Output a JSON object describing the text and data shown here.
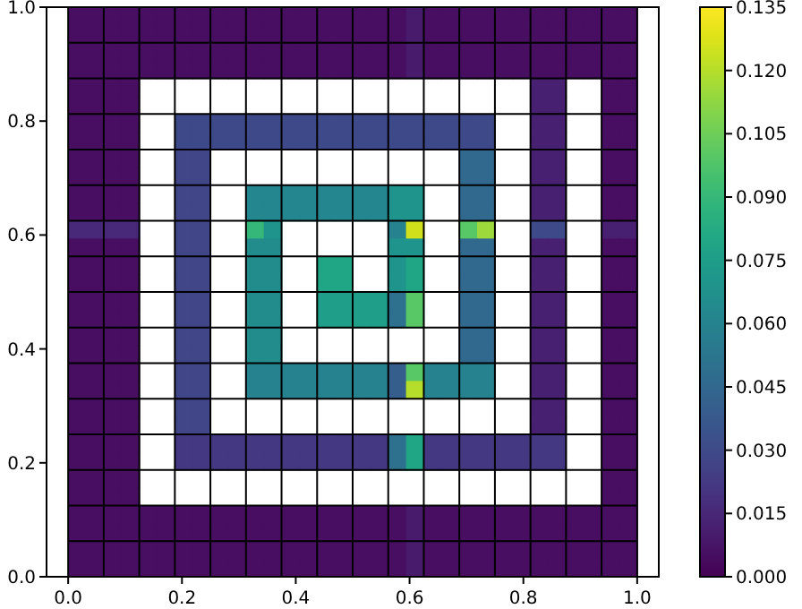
{
  "chart_data": {
    "type": "heatmap",
    "x": [
      0.015625,
      0.046875,
      0.078125,
      0.109375,
      0.140625,
      0.171875,
      0.203125,
      0.234375,
      0.265625,
      0.296875,
      0.328125,
      0.359375,
      0.390625,
      0.421875,
      0.453125,
      0.484375,
      0.515625,
      0.546875,
      0.578125,
      0.609375,
      0.640625,
      0.671875,
      0.703125,
      0.734375,
      0.765625,
      0.796875,
      0.828125,
      0.859375,
      0.890625,
      0.921875,
      0.953125,
      0.984375
    ],
    "cells": [
      [
        0.005,
        0.005,
        0.005,
        0.005,
        0.005,
        0.005,
        0.005,
        0.005,
        0.005,
        0.005,
        0.005,
        0.005,
        0.005,
        0.005,
        0.005,
        0.005,
        0.005,
        0.005,
        0.005,
        0.01,
        0.005,
        0.005,
        0.005,
        0.005,
        0.005,
        0.005,
        0.005,
        0.005,
        0.005,
        0.005,
        0.005,
        0.005
      ],
      [
        0.005,
        0.005,
        0.005,
        0.005,
        0.005,
        0.005,
        0.005,
        0.005,
        0.005,
        0.005,
        0.005,
        0.005,
        0.005,
        0.005,
        0.005,
        0.005,
        0.005,
        0.005,
        0.005,
        0.01,
        0.005,
        0.005,
        0.005,
        0.005,
        0.005,
        0.005,
        0.005,
        0.005,
        0.005,
        0.005,
        0.005,
        0.005
      ],
      [
        0.005,
        0.005,
        0.005,
        0.005,
        0.005,
        0.005,
        0.005,
        0.005,
        0.005,
        0.005,
        0.005,
        0.005,
        0.005,
        0.005,
        0.005,
        0.005,
        0.005,
        0.005,
        0.005,
        0.01,
        0.005,
        0.005,
        0.005,
        0.005,
        0.005,
        0.005,
        0.005,
        0.005,
        0.005,
        0.005,
        0.005,
        0.005
      ],
      [
        0.005,
        0.005,
        0.005,
        0.005,
        0.005,
        0.005,
        0.005,
        0.005,
        0.005,
        0.005,
        0.005,
        0.005,
        0.005,
        0.005,
        0.005,
        0.005,
        0.005,
        0.005,
        0.005,
        0.01,
        0.005,
        0.005,
        0.005,
        0.005,
        0.005,
        0.005,
        0.005,
        0.005,
        0.005,
        0.005,
        0.005,
        0.005
      ],
      [
        0.005,
        0.005,
        0.005,
        0.005,
        null,
        null,
        null,
        null,
        null,
        null,
        null,
        null,
        null,
        null,
        null,
        null,
        null,
        null,
        null,
        null,
        null,
        null,
        null,
        null,
        null,
        null,
        0.012,
        0.012,
        null,
        null,
        0.005,
        0.005
      ],
      [
        0.005,
        0.005,
        0.005,
        0.005,
        null,
        null,
        null,
        null,
        null,
        null,
        null,
        null,
        null,
        null,
        null,
        null,
        null,
        null,
        null,
        null,
        null,
        null,
        null,
        null,
        null,
        null,
        0.012,
        0.012,
        null,
        null,
        0.005,
        0.005
      ],
      [
        0.005,
        0.005,
        0.005,
        0.005,
        null,
        null,
        0.03,
        0.03,
        0.03,
        0.03,
        0.03,
        0.03,
        0.03,
        0.03,
        0.03,
        0.03,
        0.03,
        0.03,
        0.03,
        0.03,
        0.03,
        0.03,
        0.03,
        0.03,
        null,
        null,
        0.012,
        0.012,
        null,
        null,
        0.005,
        0.005
      ],
      [
        0.005,
        0.005,
        0.005,
        0.005,
        null,
        null,
        0.03,
        0.03,
        0.03,
        0.03,
        0.03,
        0.03,
        0.03,
        0.03,
        0.03,
        0.03,
        0.03,
        0.03,
        0.03,
        0.03,
        0.03,
        0.03,
        0.03,
        0.03,
        null,
        null,
        0.012,
        0.012,
        null,
        null,
        0.005,
        0.005
      ],
      [
        0.005,
        0.005,
        0.005,
        0.005,
        null,
        null,
        0.028,
        0.028,
        null,
        null,
        null,
        null,
        null,
        null,
        null,
        null,
        null,
        null,
        null,
        null,
        null,
        null,
        0.045,
        0.045,
        null,
        null,
        0.012,
        0.012,
        null,
        null,
        0.005,
        0.005
      ],
      [
        0.005,
        0.005,
        0.005,
        0.005,
        null,
        null,
        0.028,
        0.028,
        null,
        null,
        null,
        null,
        null,
        null,
        null,
        null,
        null,
        null,
        null,
        null,
        null,
        null,
        0.045,
        0.045,
        null,
        null,
        0.012,
        0.012,
        null,
        null,
        0.005,
        0.005
      ],
      [
        0.005,
        0.005,
        0.005,
        0.005,
        null,
        null,
        0.028,
        0.028,
        null,
        null,
        0.062,
        0.062,
        0.062,
        0.062,
        0.062,
        0.062,
        0.062,
        0.062,
        0.07,
        0.07,
        null,
        null,
        0.045,
        0.045,
        null,
        null,
        0.012,
        0.012,
        null,
        null,
        0.005,
        0.005
      ],
      [
        0.005,
        0.005,
        0.005,
        0.005,
        null,
        null,
        0.028,
        0.028,
        null,
        null,
        0.062,
        0.062,
        0.062,
        0.062,
        0.062,
        0.062,
        0.062,
        0.062,
        0.07,
        0.07,
        null,
        null,
        0.045,
        0.045,
        null,
        null,
        0.012,
        0.012,
        null,
        null,
        0.005,
        0.005
      ],
      [
        0.015,
        0.015,
        0.015,
        0.015,
        null,
        null,
        0.028,
        0.028,
        null,
        null,
        0.09,
        0.07,
        null,
        null,
        null,
        null,
        null,
        null,
        0.06,
        0.125,
        null,
        null,
        0.1,
        0.115,
        null,
        null,
        0.03,
        0.03,
        null,
        null,
        0.012,
        0.012
      ],
      [
        0.005,
        0.005,
        0.005,
        0.005,
        null,
        null,
        0.028,
        0.028,
        null,
        null,
        0.065,
        0.065,
        null,
        null,
        null,
        null,
        null,
        null,
        0.07,
        0.07,
        null,
        null,
        0.045,
        0.045,
        null,
        null,
        0.012,
        0.012,
        null,
        null,
        0.005,
        0.005
      ],
      [
        0.005,
        0.005,
        0.005,
        0.005,
        null,
        null,
        0.028,
        0.028,
        null,
        null,
        0.065,
        0.065,
        null,
        null,
        0.08,
        0.08,
        null,
        null,
        0.07,
        0.08,
        null,
        null,
        0.045,
        0.045,
        null,
        null,
        0.012,
        0.012,
        null,
        null,
        0.005,
        0.005
      ],
      [
        0.005,
        0.005,
        0.005,
        0.005,
        null,
        null,
        0.028,
        0.028,
        null,
        null,
        0.065,
        0.065,
        null,
        null,
        0.08,
        0.08,
        null,
        null,
        0.07,
        0.08,
        null,
        null,
        0.045,
        0.045,
        null,
        null,
        0.012,
        0.012,
        null,
        null,
        0.005,
        0.005
      ],
      [
        0.005,
        0.005,
        0.005,
        0.005,
        null,
        null,
        0.028,
        0.028,
        null,
        null,
        0.065,
        0.065,
        null,
        null,
        0.075,
        0.075,
        0.075,
        0.075,
        0.05,
        0.1,
        null,
        null,
        0.045,
        0.045,
        null,
        null,
        0.012,
        0.012,
        null,
        null,
        0.005,
        0.005
      ],
      [
        0.005,
        0.005,
        0.005,
        0.005,
        null,
        null,
        0.028,
        0.028,
        null,
        null,
        0.065,
        0.065,
        null,
        null,
        0.075,
        0.075,
        0.075,
        0.075,
        0.05,
        0.1,
        null,
        null,
        0.045,
        0.045,
        null,
        null,
        0.012,
        0.012,
        null,
        null,
        0.005,
        0.005
      ],
      [
        0.005,
        0.005,
        0.005,
        0.005,
        null,
        null,
        0.028,
        0.028,
        null,
        null,
        0.065,
        0.065,
        null,
        null,
        null,
        null,
        null,
        null,
        null,
        null,
        null,
        null,
        0.045,
        0.045,
        null,
        null,
        0.012,
        0.012,
        null,
        null,
        0.005,
        0.005
      ],
      [
        0.005,
        0.005,
        0.005,
        0.005,
        null,
        null,
        0.028,
        0.028,
        null,
        null,
        0.065,
        0.065,
        null,
        null,
        null,
        null,
        null,
        null,
        null,
        null,
        null,
        null,
        0.045,
        0.045,
        null,
        null,
        0.012,
        0.012,
        null,
        null,
        0.005,
        0.005
      ],
      [
        0.005,
        0.005,
        0.005,
        0.005,
        null,
        null,
        0.028,
        0.028,
        null,
        null,
        0.06,
        0.06,
        0.06,
        0.06,
        0.06,
        0.06,
        0.06,
        0.06,
        0.04,
        0.1,
        0.06,
        0.06,
        0.06,
        0.06,
        null,
        null,
        0.012,
        0.012,
        null,
        null,
        0.005,
        0.005
      ],
      [
        0.005,
        0.005,
        0.005,
        0.005,
        null,
        null,
        0.028,
        0.028,
        null,
        null,
        0.06,
        0.06,
        0.06,
        0.06,
        0.06,
        0.06,
        0.06,
        0.06,
        0.04,
        0.12,
        0.06,
        0.06,
        0.06,
        0.06,
        null,
        null,
        0.012,
        0.012,
        null,
        null,
        0.005,
        0.005
      ],
      [
        0.005,
        0.005,
        0.005,
        0.005,
        null,
        null,
        0.028,
        0.028,
        null,
        null,
        null,
        null,
        null,
        null,
        null,
        null,
        null,
        null,
        null,
        null,
        null,
        null,
        null,
        null,
        null,
        null,
        0.012,
        0.012,
        null,
        null,
        0.005,
        0.005
      ],
      [
        0.005,
        0.005,
        0.005,
        0.005,
        null,
        null,
        0.028,
        0.028,
        null,
        null,
        null,
        null,
        null,
        null,
        null,
        null,
        null,
        null,
        null,
        null,
        null,
        null,
        null,
        null,
        null,
        null,
        0.012,
        0.012,
        null,
        null,
        0.005,
        0.005
      ],
      [
        0.005,
        0.005,
        0.005,
        0.005,
        null,
        null,
        0.022,
        0.022,
        0.022,
        0.022,
        0.022,
        0.022,
        0.022,
        0.022,
        0.022,
        0.022,
        0.022,
        0.022,
        0.05,
        0.08,
        0.022,
        0.022,
        0.022,
        0.022,
        0.022,
        0.022,
        0.022,
        0.022,
        null,
        null,
        0.005,
        0.005
      ],
      [
        0.005,
        0.005,
        0.005,
        0.005,
        null,
        null,
        0.022,
        0.022,
        0.022,
        0.022,
        0.022,
        0.022,
        0.022,
        0.022,
        0.022,
        0.022,
        0.022,
        0.022,
        0.05,
        0.08,
        0.022,
        0.022,
        0.022,
        0.022,
        0.022,
        0.022,
        0.022,
        0.022,
        null,
        null,
        0.005,
        0.005
      ],
      [
        0.005,
        0.005,
        0.005,
        0.005,
        null,
        null,
        null,
        null,
        null,
        null,
        null,
        null,
        null,
        null,
        null,
        null,
        null,
        null,
        null,
        null,
        null,
        null,
        null,
        null,
        null,
        null,
        null,
        null,
        null,
        null,
        0.005,
        0.005
      ],
      [
        0.005,
        0.005,
        0.005,
        0.005,
        null,
        null,
        null,
        null,
        null,
        null,
        null,
        null,
        null,
        null,
        null,
        null,
        null,
        null,
        null,
        null,
        null,
        null,
        null,
        null,
        null,
        null,
        null,
        null,
        null,
        null,
        0.005,
        0.005
      ],
      [
        0.005,
        0.005,
        0.005,
        0.005,
        0.005,
        0.005,
        0.005,
        0.005,
        0.005,
        0.005,
        0.005,
        0.005,
        0.005,
        0.005,
        0.005,
        0.005,
        0.005,
        0.005,
        0.005,
        0.01,
        0.005,
        0.005,
        0.005,
        0.005,
        0.005,
        0.005,
        0.005,
        0.005,
        0.005,
        0.005,
        0.005,
        0.005
      ],
      [
        0.005,
        0.005,
        0.005,
        0.005,
        0.005,
        0.005,
        0.005,
        0.005,
        0.005,
        0.005,
        0.005,
        0.005,
        0.005,
        0.005,
        0.005,
        0.005,
        0.005,
        0.005,
        0.005,
        0.01,
        0.005,
        0.005,
        0.005,
        0.005,
        0.005,
        0.005,
        0.005,
        0.005,
        0.005,
        0.005,
        0.005,
        0.005
      ],
      [
        0.005,
        0.005,
        0.005,
        0.005,
        0.005,
        0.005,
        0.005,
        0.005,
        0.005,
        0.005,
        0.005,
        0.005,
        0.005,
        0.005,
        0.005,
        0.005,
        0.005,
        0.005,
        0.005,
        0.01,
        0.005,
        0.005,
        0.005,
        0.005,
        0.005,
        0.005,
        0.005,
        0.005,
        0.005,
        0.005,
        0.005,
        0.005
      ],
      [
        0.005,
        0.005,
        0.005,
        0.005,
        0.005,
        0.005,
        0.005,
        0.005,
        0.005,
        0.005,
        0.005,
        0.005,
        0.005,
        0.005,
        0.005,
        0.005,
        0.005,
        0.005,
        0.005,
        0.01,
        0.005,
        0.005,
        0.005,
        0.005,
        0.005,
        0.005,
        0.005,
        0.005,
        0.005,
        0.005,
        0.005,
        0.005
      ]
    ],
    "xlim": [
      -0.038,
      1.038
    ],
    "ylim": [
      0,
      1
    ],
    "xticks": [
      {
        "value": 0,
        "label": "0.0"
      },
      {
        "value": 0.2,
        "label": "0.2"
      },
      {
        "value": 0.4,
        "label": "0.4"
      },
      {
        "value": 0.6,
        "label": "0.6"
      },
      {
        "value": 0.8,
        "label": "0.8"
      },
      {
        "value": 1,
        "label": "1.0"
      }
    ],
    "yticks": [
      {
        "value": 0,
        "label": "0.0"
      },
      {
        "value": 0.2,
        "label": "0.2"
      },
      {
        "value": 0.4,
        "label": "0.4"
      },
      {
        "value": 0.6,
        "label": "0.6"
      },
      {
        "value": 0.8,
        "label": "0.8"
      },
      {
        "value": 1,
        "label": "1.0"
      }
    ],
    "clim": [
      0,
      0.135
    ],
    "cticks": [
      {
        "value": 0,
        "label": "0.000"
      },
      {
        "value": 0.015,
        "label": "0.015"
      },
      {
        "value": 0.03,
        "label": "0.030"
      },
      {
        "value": 0.045,
        "label": "0.045"
      },
      {
        "value": 0.06,
        "label": "0.060"
      },
      {
        "value": 0.075,
        "label": "0.075"
      },
      {
        "value": 0.09,
        "label": "0.090"
      },
      {
        "value": 0.105,
        "label": "0.105"
      },
      {
        "value": 0.12,
        "label": "0.120"
      },
      {
        "value": 0.135,
        "label": "0.135"
      }
    ],
    "ref_lines": [
      {
        "axis": "x",
        "value": 0,
        "color": "#000000"
      },
      {
        "axis": "x",
        "value": 0.0625,
        "color": "#000000"
      },
      {
        "axis": "x",
        "value": 0.125,
        "color": "#000000"
      },
      {
        "axis": "x",
        "value": 0.1875,
        "color": "#000000"
      },
      {
        "axis": "x",
        "value": 0.25,
        "color": "#000000"
      },
      {
        "axis": "x",
        "value": 0.3125,
        "color": "#000000"
      },
      {
        "axis": "x",
        "value": 0.375,
        "color": "#000000"
      },
      {
        "axis": "x",
        "value": 0.4375,
        "color": "#000000"
      },
      {
        "axis": "x",
        "value": 0.5,
        "color": "#000000"
      },
      {
        "axis": "x",
        "value": 0.5625,
        "color": "#000000"
      },
      {
        "axis": "x",
        "value": 0.625,
        "color": "#000000"
      },
      {
        "axis": "x",
        "value": 0.6875,
        "color": "#000000"
      },
      {
        "axis": "x",
        "value": 0.75,
        "color": "#000000"
      },
      {
        "axis": "x",
        "value": 0.8125,
        "color": "#000000"
      },
      {
        "axis": "x",
        "value": 0.875,
        "color": "#000000"
      },
      {
        "axis": "x",
        "value": 0.9375,
        "color": "#000000"
      },
      {
        "axis": "x",
        "value": 1,
        "color": "#000000"
      },
      {
        "axis": "y",
        "value": 0.0625,
        "color": "#000000"
      },
      {
        "axis": "y",
        "value": 0.125,
        "color": "#000000"
      },
      {
        "axis": "y",
        "value": 0.1875,
        "color": "#000000"
      },
      {
        "axis": "y",
        "value": 0.25,
        "color": "#000000"
      },
      {
        "axis": "y",
        "value": 0.3125,
        "color": "#000000"
      },
      {
        "axis": "y",
        "value": 0.375,
        "color": "#000000"
      },
      {
        "axis": "y",
        "value": 0.4375,
        "color": "#000000"
      },
      {
        "axis": "y",
        "value": 0.5,
        "color": "#000000"
      },
      {
        "axis": "y",
        "value": 0.5625,
        "color": "#000000"
      },
      {
        "axis": "y",
        "value": 0.625,
        "color": "#000000"
      },
      {
        "axis": "y",
        "value": 0.6875,
        "color": "#000000"
      },
      {
        "axis": "y",
        "value": 0.75,
        "color": "#000000"
      },
      {
        "axis": "y",
        "value": 0.8125,
        "color": "#000000"
      },
      {
        "axis": "y",
        "value": 0.875,
        "color": "#000000"
      },
      {
        "axis": "y",
        "value": 0.9375,
        "color": "#000000"
      }
    ]
  }
}
